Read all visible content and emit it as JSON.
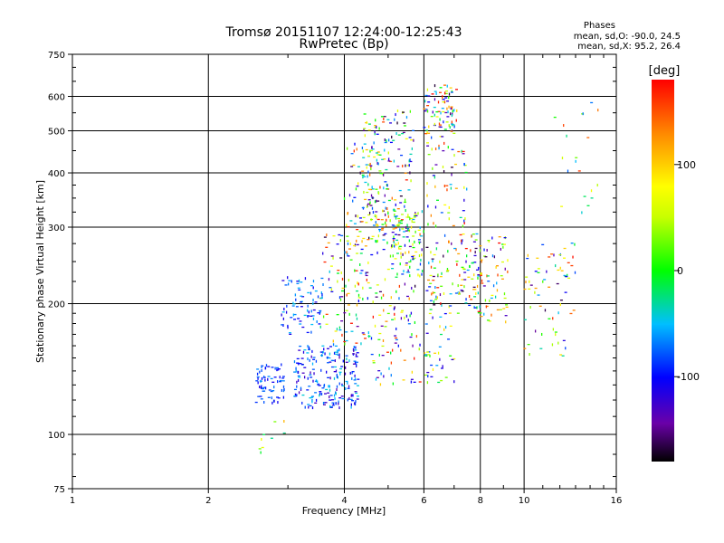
{
  "chart_data": {
    "type": "scatter",
    "title": "Tromsø 20151107 12:24:00-12:25:43",
    "subtitle": "RwPretec (Bp)",
    "xlabel": "Frequency [MHz]",
    "ylabel": "Stationary phase Virtual Height [km]",
    "x_scale": "log",
    "y_scale": "log",
    "xlim": [
      1,
      16
    ],
    "ylim": [
      75,
      750
    ],
    "x_ticks": [
      "1",
      "2",
      "4",
      "6",
      "8",
      "10",
      "16"
    ],
    "x_tick_values": [
      1,
      2,
      4,
      6,
      8,
      10,
      16
    ],
    "y_ticks": [
      "75",
      "100",
      "200",
      "300",
      "400",
      "500",
      "600",
      "750"
    ],
    "y_tick_values": [
      75,
      100,
      200,
      300,
      400,
      500,
      600,
      750
    ],
    "grid": true,
    "colorbar": {
      "label": "[deg]",
      "range": [
        -180,
        180
      ],
      "ticks": [
        "100",
        "0",
        "-100"
      ],
      "tick_values": [
        100,
        0,
        -100
      ]
    },
    "stats": {
      "heading": "Phases",
      "line1": "mean, sd,O: -90.0, 24.5",
      "line2": "mean, sd,X:  95.2, 26.4"
    },
    "clusters": [
      {
        "x": [
          2.55,
          2.95
        ],
        "y": [
          118,
          145
        ],
        "n": 70,
        "phase": [
          -110,
          -60
        ]
      },
      {
        "x": [
          3.1,
          4.3
        ],
        "y": [
          115,
          160
        ],
        "n": 220,
        "phase": [
          -140,
          -40
        ]
      },
      {
        "x": [
          2.9,
          3.6
        ],
        "y": [
          170,
          230
        ],
        "n": 80,
        "phase": [
          -120,
          -40
        ]
      },
      {
        "x": [
          3.5,
          4.6
        ],
        "y": [
          160,
          290
        ],
        "n": 110,
        "phase": [
          -170,
          180
        ]
      },
      {
        "x": [
          4.0,
          4.9
        ],
        "y": [
          270,
          470
        ],
        "n": 90,
        "phase": [
          -170,
          180
        ]
      },
      {
        "x": [
          4.4,
          5.7
        ],
        "y": [
          300,
          560
        ],
        "n": 160,
        "phase": [
          -170,
          180
        ]
      },
      {
        "x": [
          4.6,
          5.9
        ],
        "y": [
          130,
          300
        ],
        "n": 120,
        "phase": [
          -170,
          180
        ]
      },
      {
        "x": [
          5.0,
          6.0
        ],
        "y": [
          230,
          330
        ],
        "n": 90,
        "phase": [
          -140,
          100
        ]
      },
      {
        "x": [
          6.0,
          7.1
        ],
        "y": [
          480,
          640
        ],
        "n": 90,
        "phase": [
          -170,
          180
        ]
      },
      {
        "x": [
          6.1,
          7.5
        ],
        "y": [
          300,
          470
        ],
        "n": 60,
        "phase": [
          -170,
          180
        ]
      },
      {
        "x": [
          6.0,
          8.1
        ],
        "y": [
          190,
          290
        ],
        "n": 120,
        "phase": [
          -170,
          180
        ]
      },
      {
        "x": [
          6.0,
          7.0
        ],
        "y": [
          130,
          190
        ],
        "n": 40,
        "phase": [
          -140,
          120
        ]
      },
      {
        "x": [
          7.7,
          9.2
        ],
        "y": [
          180,
          290
        ],
        "n": 70,
        "phase": [
          -170,
          180
        ]
      },
      {
        "x": [
          10.0,
          13.0
        ],
        "y": [
          150,
          280
        ],
        "n": 70,
        "phase": [
          -170,
          180
        ]
      },
      {
        "x": [
          11.5,
          15.0
        ],
        "y": [
          300,
          600
        ],
        "n": 20,
        "phase": [
          -120,
          180
        ]
      },
      {
        "x": [
          2.6,
          3.0
        ],
        "y": [
          90,
          110
        ],
        "n": 10,
        "phase": [
          -40,
          140
        ]
      }
    ]
  }
}
